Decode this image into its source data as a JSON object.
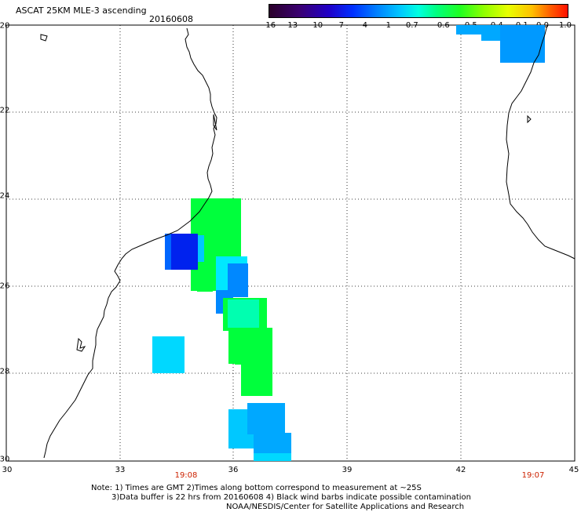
{
  "title": "ASCAT 25KM MLE-3 ascending",
  "date": "20160608",
  "colorbar": {
    "labels": [
      "-16",
      "-13",
      "-10",
      "-7",
      "-4",
      "-1",
      "-0.7",
      "-0.6",
      "-0.5",
      "-0.4",
      "-0.1",
      "0.0",
      "1.0"
    ]
  },
  "map": {
    "lon_range": [
      30,
      45
    ],
    "lat_range": [
      -30,
      -20
    ],
    "x_ticks": [
      "30",
      "33",
      "36",
      "39",
      "42",
      "45"
    ],
    "y_ticks": [
      "-20",
      "-22",
      "-24",
      "-26",
      "-28",
      "-30"
    ],
    "grid": true
  },
  "times": [
    "19:08",
    "19:07"
  ],
  "notes": [
    "Note: 1) Times are GMT 2)Times along bottom correspond to measurement at ~25S",
    "3)Data buffer is 22 hrs from 20160608 4) Black wind barbs indicate possible contamination",
    "NOAA/NESDIS/Center for Satellite Applications and Research"
  ],
  "colors": {
    "green": "#00ff3c",
    "cyan": "#00d8ff",
    "blue": "#0022ee",
    "mid_blue": "#0088ff",
    "time_red": "#cc2200"
  }
}
